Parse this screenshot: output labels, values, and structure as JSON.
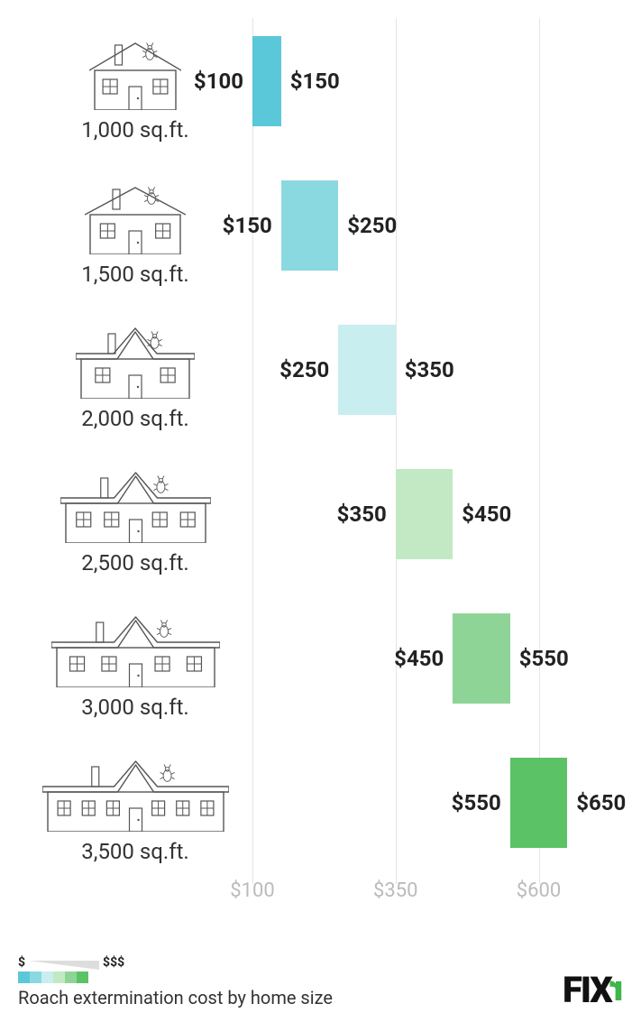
{
  "chart": {
    "type": "range-bar",
    "axis": {
      "min": 100,
      "max": 700,
      "ticks": [
        100,
        350,
        600
      ],
      "tick_labels": [
        "$100",
        "$350",
        "$600"
      ],
      "grid_color": "#e5e5e5",
      "label_color": "#bbbbbb",
      "label_fontsize": 22
    },
    "value_label_fontsize": 24,
    "value_label_color": "#222222",
    "size_label_fontsize": 24,
    "size_label_color": "#333333",
    "rows": [
      {
        "size": "1,000 sq.ft.",
        "low": 100,
        "high": 150,
        "low_label": "$100",
        "high_label": "$150",
        "bar_color": "#5ac8d8",
        "house_width": 90,
        "windows": 2,
        "gable": false
      },
      {
        "size": "1,500 sq.ft.",
        "low": 150,
        "high": 250,
        "low_label": "$150",
        "high_label": "$250",
        "bar_color": "#8bd9e0",
        "house_width": 100,
        "windows": 2,
        "gable": false
      },
      {
        "size": "2,000 sq.ft.",
        "low": 250,
        "high": 350,
        "low_label": "$250",
        "high_label": "$350",
        "bar_color": "#c8eef0",
        "house_width": 120,
        "windows": 2,
        "gable": true
      },
      {
        "size": "2,500 sq.ft.",
        "low": 350,
        "high": 450,
        "low_label": "$350",
        "high_label": "$450",
        "bar_color": "#c3e8c4",
        "house_width": 155,
        "windows": 4,
        "gable": true
      },
      {
        "size": "3,000 sq.ft.",
        "low": 450,
        "high": 550,
        "low_label": "$450",
        "high_label": "$550",
        "bar_color": "#8ed497",
        "house_width": 175,
        "windows": 4,
        "gable": true
      },
      {
        "size": "3,500 sq.ft.",
        "low": 550,
        "high": 650,
        "low_label": "$550",
        "high_label": "$650",
        "bar_color": "#5cc266",
        "house_width": 195,
        "windows": 6,
        "gable": true
      }
    ]
  },
  "legend": {
    "low_symbol": "$",
    "high_symbol": "$$$",
    "swatch_colors": [
      "#5ac8d8",
      "#8bd9e0",
      "#c8eef0",
      "#c3e8c4",
      "#8ed497",
      "#5cc266"
    ]
  },
  "caption": "Roach extermination cost by home size",
  "logo": {
    "text": "FIX",
    "accent": "r"
  },
  "house_stroke": "#555555"
}
